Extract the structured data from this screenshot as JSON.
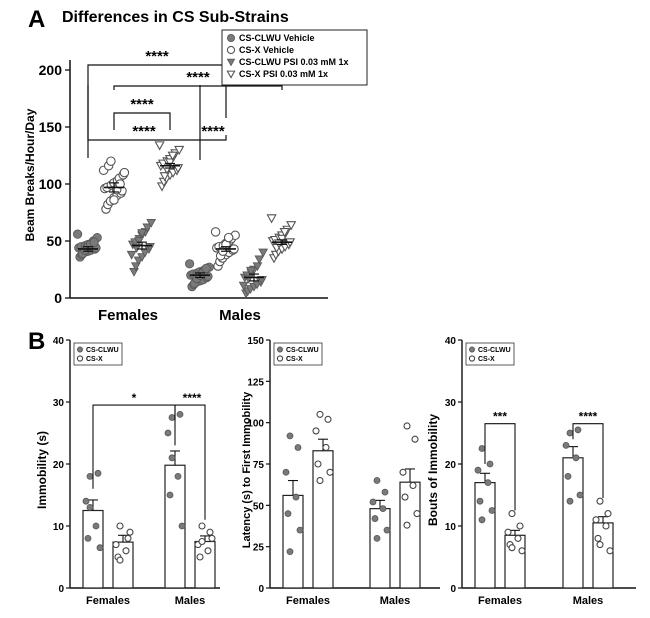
{
  "figure": {
    "panel_a_letter": "A",
    "panel_b_letter": "B"
  },
  "chart_data": [
    {
      "id": "A",
      "type": "scatter",
      "title": "Differences in CS Sub-Strains",
      "ylabel": "Beam Breaks/Hour/Day",
      "ylim": [
        0,
        200
      ],
      "yticks": [
        0,
        50,
        100,
        150,
        200
      ],
      "groups": [
        "Females",
        "Males"
      ],
      "legend_position": "top-right",
      "series": [
        {
          "name": "CS-CLWU Vehicle",
          "marker": "filled-circle",
          "mean": [
            43,
            20
          ],
          "sem": [
            2,
            2
          ],
          "points": [
            [
              36,
              38,
              40,
              41,
              42,
              43,
              44,
              44,
              45,
              46,
              47,
              48,
              50,
              53,
              56,
              39,
              42,
              45,
              47,
              49
            ],
            [
              10,
              12,
              14,
              15,
              16,
              18,
              19,
              20,
              21,
              22,
              23,
              24,
              25,
              27,
              30,
              13,
              17,
              20,
              22,
              26
            ]
          ]
        },
        {
          "name": "CS-X Vehicle",
          "marker": "open-circle",
          "mean": [
            97,
            43
          ],
          "sem": [
            4,
            2
          ],
          "points": [
            [
              78,
              82,
              85,
              88,
              90,
              92,
              94,
              96,
              97,
              99,
              101,
              103,
              105,
              108,
              112,
              116,
              120,
              86,
              95,
              100,
              110
            ],
            [
              28,
              32,
              35,
              38,
              40,
              42,
              43,
              44,
              45,
              46,
              48,
              50,
              52,
              55,
              58,
              37,
              41,
              47,
              53
            ]
          ]
        },
        {
          "name": "CS-CLWU PSI 0.03 mM 1x",
          "marker": "filled-triangle",
          "mean": [
            46,
            18
          ],
          "sem": [
            3,
            3
          ],
          "points": [
            [
              23,
              28,
              33,
              36,
              40,
              43,
              45,
              47,
              49,
              52,
              55,
              58,
              62,
              66,
              38,
              44,
              50,
              57
            ],
            [
              4,
              6,
              8,
              10,
              12,
              14,
              16,
              18,
              20,
              22,
              25,
              28,
              34,
              40,
              11,
              17,
              24
            ]
          ]
        },
        {
          "name": "CS-X PSI 0.03 mM 1x",
          "marker": "open-triangle",
          "mean": [
            116,
            49
          ],
          "sem": [
            2,
            2
          ],
          "points": [
            [
              98,
              102,
              105,
              108,
              110,
              112,
              114,
              116,
              118,
              120,
              122,
              124,
              127,
              130,
              134,
              107,
              113,
              119,
              125
            ],
            [
              35,
              38,
              41,
              43,
              45,
              47,
              49,
              50,
              51,
              53,
              55,
              57,
              60,
              64,
              70,
              44,
              48,
              52,
              58
            ]
          ]
        }
      ],
      "significance": [
        "****",
        "****",
        "****",
        "****"
      ]
    },
    {
      "id": "B1",
      "type": "bar",
      "ylabel": "Immobility (s)",
      "ylim": [
        0,
        40
      ],
      "yticks": [
        0,
        10,
        20,
        30,
        40
      ],
      "categories": [
        "Females",
        "Males"
      ],
      "legend_position": "top-left",
      "series": [
        {
          "name": "CS-CLWU",
          "marker": "filled-circle",
          "values": [
            12.5,
            19.8
          ],
          "sem": [
            1.7,
            2.3
          ],
          "points": [
            [
              18,
              18.5,
              14,
              10,
              8,
              6.5,
              13
            ],
            [
              27.5,
              28,
              25,
              18,
              15,
              10,
              21
            ]
          ]
        },
        {
          "name": "CS-X",
          "marker": "open-circle",
          "values": [
            7.4,
            7.5
          ],
          "sem": [
            1.1,
            0.9
          ],
          "points": [
            [
              10,
              8,
              7,
              6,
              5,
              9,
              4.5
            ],
            [
              10,
              9,
              7,
              6,
              5,
              8,
              7.5
            ]
          ]
        }
      ],
      "significance": [
        "*",
        "****"
      ]
    },
    {
      "id": "B2",
      "type": "bar",
      "ylabel": "Latency (s) to First Immobility",
      "ylim": [
        0,
        150
      ],
      "yticks": [
        0,
        25,
        50,
        75,
        100,
        125,
        150
      ],
      "categories": [
        "Females",
        "Males"
      ],
      "legend_position": "top-left",
      "series": [
        {
          "name": "CS-CLWU",
          "marker": "filled-circle",
          "values": [
            56,
            48
          ],
          "sem": [
            9,
            5
          ],
          "points": [
            [
              92,
              85,
              70,
              55,
              45,
              35,
              22
            ],
            [
              65,
              58,
              52,
              48,
              42,
              35,
              30
            ]
          ]
        },
        {
          "name": "CS-X",
          "marker": "open-circle",
          "values": [
            83,
            64
          ],
          "sem": [
            7,
            8
          ],
          "points": [
            [
              105,
              102,
              95,
              85,
              75,
              70,
              65
            ],
            [
              98,
              90,
              70,
              62,
              55,
              45,
              38
            ]
          ]
        }
      ],
      "significance": []
    },
    {
      "id": "B3",
      "type": "bar",
      "ylabel": "Bouts of Immobility",
      "ylim": [
        0,
        40
      ],
      "yticks": [
        0,
        10,
        20,
        30,
        40
      ],
      "categories": [
        "Females",
        "Males"
      ],
      "legend_position": "top-left",
      "series": [
        {
          "name": "CS-CLWU",
          "marker": "filled-circle",
          "values": [
            17,
            21
          ],
          "sem": [
            1.5,
            1.8
          ],
          "points": [
            [
              22.5,
              20,
              19,
              17,
              14,
              12.5,
              11
            ],
            [
              25,
              25.5,
              23,
              21,
              18,
              15,
              14
            ]
          ]
        },
        {
          "name": "CS-X",
          "marker": "open-circle",
          "values": [
            8.5,
            10.5
          ],
          "sem": [
            0.8,
            1.0
          ],
          "points": [
            [
              12,
              10,
              9,
              8,
              7,
              6,
              6.5
            ],
            [
              14,
              12,
              11,
              10,
              8,
              6,
              7
            ]
          ]
        }
      ],
      "significance": [
        "***",
        "****"
      ]
    }
  ]
}
